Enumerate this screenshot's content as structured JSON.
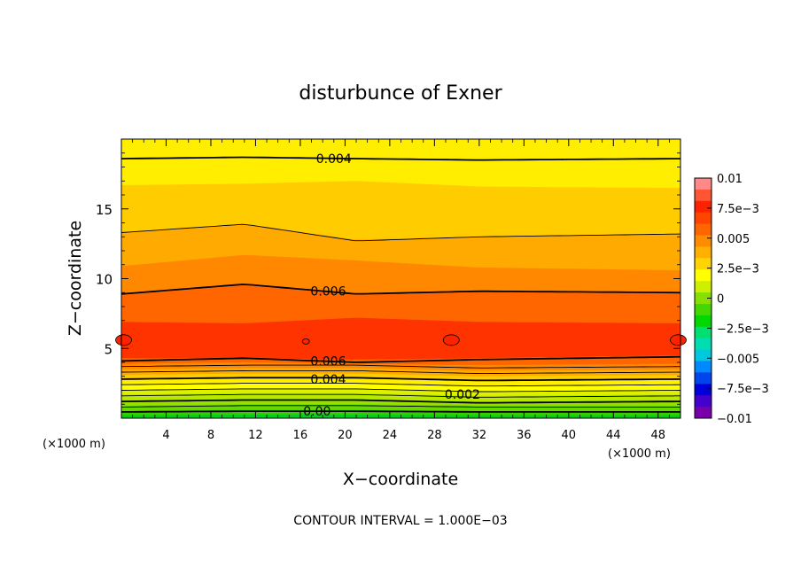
{
  "chart_data": {
    "type": "contour",
    "title": "disturbunce of Exner",
    "xlabel": "X−coordinate",
    "ylabel": "Z−coordinate",
    "x_unit": "(×1000 m)",
    "z_unit": "(×1000 m)",
    "xlim": [
      0,
      50
    ],
    "ylim": [
      0,
      20
    ],
    "xticks": [
      "4",
      "8",
      "12",
      "16",
      "20",
      "24",
      "28",
      "32",
      "36",
      "40",
      "44",
      "48"
    ],
    "yticks": [
      "5",
      "10",
      "15"
    ],
    "footer": "CONTOUR INTERVAL = 1.000E−03",
    "contour_interval": 0.001,
    "colorbar": {
      "range": [
        -0.01,
        0.01
      ],
      "tick_labels": [
        "0.01",
        "7.5e−3",
        "0.005",
        "2.5e−3",
        "0",
        "−2.5e−3",
        "−0.005",
        "−7.5e−3",
        "−0.01"
      ],
      "tick_values": [
        0.01,
        0.0075,
        0.005,
        0.0025,
        0,
        -0.0025,
        -0.005,
        -0.0075,
        -0.01
      ],
      "colors": [
        "#ff8888",
        "#ff5533",
        "#ff2200",
        "#ff4400",
        "#ff6600",
        "#ff8c00",
        "#ffb000",
        "#ffd400",
        "#ffff00",
        "#ccf000",
        "#88e000",
        "#44d800",
        "#00d800",
        "#00e070",
        "#00ddb0",
        "#00c8e0",
        "#0088ff",
        "#0044ee",
        "#0000dd",
        "#4400cc",
        "#7700aa"
      ]
    },
    "contour_labels": [
      {
        "text": "0.004",
        "x": 19,
        "z": 18.6
      },
      {
        "text": "0.006",
        "x": 18.5,
        "z": 9.1
      },
      {
        "text": "0.006",
        "x": 18.5,
        "z": 4.1
      },
      {
        "text": "0.004",
        "x": 18.5,
        "z": 2.8
      },
      {
        "text": "0.002",
        "x": 30.5,
        "z": 1.7
      },
      {
        "text": "0.00",
        "x": 17.5,
        "z": 0.5
      }
    ],
    "bands": [
      {
        "value": 0.0045,
        "color": "#ffee00",
        "zmax": [
          19.5,
          19.5,
          19.5,
          19.5,
          19.5
        ]
      },
      {
        "value": 0.005,
        "color": "#ffcc00",
        "zmax": [
          16.7,
          16.8,
          17.0,
          16.6,
          16.5
        ]
      },
      {
        "value": 0.0055,
        "color": "#ffaa00",
        "zmax": [
          13.3,
          13.9,
          12.8,
          13.0,
          13.2
        ]
      },
      {
        "value": 0.006,
        "color": "#ff8800",
        "zmax": [
          10.9,
          11.7,
          11.3,
          10.8,
          10.6
        ]
      },
      {
        "value": 0.0065,
        "color": "#ff6600",
        "zmax": [
          8.9,
          9.6,
          8.9,
          9.1,
          9.0
        ]
      },
      {
        "value": 0.007,
        "color": "#ff3300",
        "zmax": [
          6.9,
          6.8,
          7.2,
          6.9,
          6.8
        ]
      },
      {
        "value": 0.0065,
        "color": "#ff6600",
        "zmax": [
          4.3,
          4.3,
          4.2,
          4.3,
          4.5
        ]
      },
      {
        "value": 0.006,
        "color": "#ff8800",
        "zmax": [
          3.9,
          4.0,
          3.9,
          3.8,
          3.9
        ]
      },
      {
        "value": 0.0055,
        "color": "#ffaa00",
        "zmax": [
          3.5,
          3.6,
          3.6,
          3.4,
          3.5
        ]
      },
      {
        "value": 0.005,
        "color": "#ffcc00",
        "zmax": [
          3.1,
          3.2,
          3.2,
          3.0,
          3.1
        ]
      },
      {
        "value": 0.0045,
        "color": "#ffee00",
        "zmax": [
          2.8,
          2.9,
          2.8,
          2.7,
          2.8
        ]
      },
      {
        "value": 0.004,
        "color": "#ffff00",
        "zmax": [
          2.4,
          2.5,
          2.5,
          2.3,
          2.4
        ]
      },
      {
        "value": 0.0035,
        "color": "#ddf000",
        "zmax": [
          2.0,
          2.1,
          2.1,
          1.9,
          2.0
        ]
      },
      {
        "value": 0.003,
        "color": "#bbe800",
        "zmax": [
          1.7,
          1.8,
          1.8,
          1.6,
          1.7
        ]
      },
      {
        "value": 0.0025,
        "color": "#99e000",
        "zmax": [
          1.3,
          1.4,
          1.4,
          1.2,
          1.3
        ]
      },
      {
        "value": 0.002,
        "color": "#66d800",
        "zmax": [
          0.9,
          1.0,
          1.0,
          0.9,
          0.9
        ]
      },
      {
        "value": 0.0015,
        "color": "#33d000",
        "zmax": [
          0.5,
          0.6,
          0.6,
          0.5,
          0.5
        ]
      },
      {
        "value": 0.001,
        "color": "#00cc22",
        "zmax": [
          0.2,
          0.25,
          0.25,
          0.2,
          0.2
        ]
      }
    ],
    "contour_lines": [
      {
        "z": [
          18.6,
          18.7,
          18.6,
          18.5,
          18.6
        ],
        "bold": true
      },
      {
        "z": [
          13.3,
          13.9,
          12.7,
          13.0,
          13.2
        ],
        "bold": false
      },
      {
        "z": [
          8.9,
          9.6,
          8.9,
          9.1,
          9.0
        ],
        "bold": true
      },
      {
        "z": [
          4.1,
          4.3,
          4.0,
          4.2,
          4.4
        ],
        "bold": true
      },
      {
        "z": [
          3.7,
          3.8,
          3.8,
          3.6,
          3.7
        ],
        "bold": false
      },
      {
        "z": [
          3.3,
          3.4,
          3.4,
          3.2,
          3.3
        ],
        "bold": false
      },
      {
        "z": [
          2.8,
          2.9,
          2.9,
          2.7,
          2.8
        ],
        "bold": true
      },
      {
        "z": [
          2.4,
          2.5,
          2.5,
          2.3,
          2.4
        ],
        "bold": false
      },
      {
        "z": [
          2.0,
          2.1,
          2.1,
          1.9,
          2.0
        ],
        "bold": false
      },
      {
        "z": [
          1.6,
          1.7,
          1.7,
          1.5,
          1.6
        ],
        "bold": false
      },
      {
        "z": [
          1.2,
          1.3,
          1.3,
          1.1,
          1.2
        ],
        "bold": true
      },
      {
        "z": [
          0.8,
          0.9,
          0.9,
          0.8,
          0.8
        ],
        "bold": false
      },
      {
        "z": [
          0.45,
          0.5,
          0.5,
          0.45,
          0.45
        ],
        "bold": true
      }
    ],
    "contour_x": [
      0,
      11,
      21,
      32,
      50
    ],
    "ellipses": [
      {
        "x": 0.2,
        "z": 5.6
      },
      {
        "x": 16.5,
        "z": 5.5
      },
      {
        "x": 29.5,
        "z": 5.6
      },
      {
        "x": 49.8,
        "z": 5.6
      }
    ]
  }
}
